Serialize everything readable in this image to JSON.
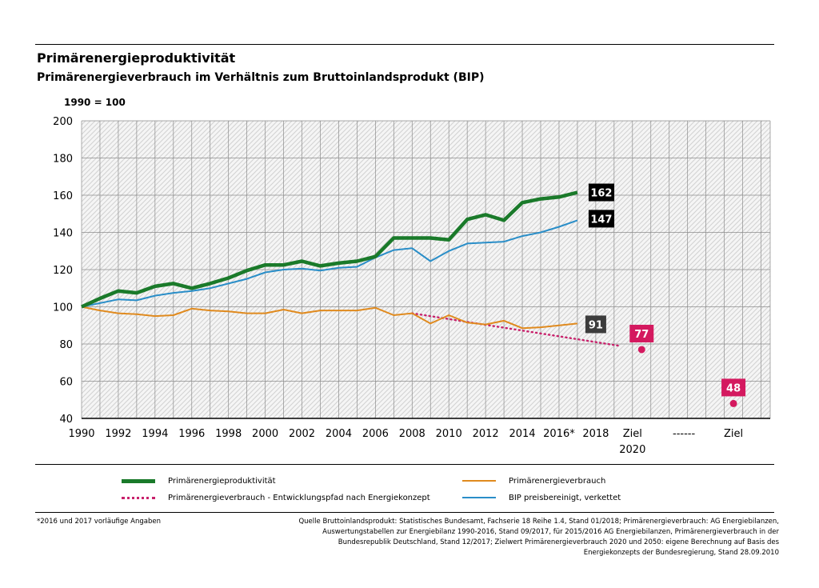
{
  "title": "Primärenergieproduktivität",
  "subtitle": "Primärenergieverbrauch im Verhältnis zum Bruttoinlandsprodukt (BIP)",
  "unit_label": "1990 = 100",
  "footnote": "*2016 und 2017 vorläufige Angaben",
  "source": "Quelle Bruttoinlandsprodukt: Statistisches Bundesamt, Fachserie 18 Reihe 1.4, Stand 01/2018; Primärenergieverbrauch: AG Energiebilanzen, Auswertungstabellen zur Energiebilanz 1990-2016, Stand 09/2017, für 2015/2016 AG Energiebilanzen, Primärenergieverbrauch in der Bundesrepublik Deutschland, Stand 12/2017; Zielwert Primärenergieverbrauch 2020 und 2050: eigene Berechnung auf Basis des Energiekonzepts der Bundesregierung, Stand 28.09.2010",
  "chart_data": {
    "type": "line",
    "ylim": [
      40,
      200
    ],
    "yticks": [
      40,
      60,
      80,
      100,
      120,
      140,
      160,
      180,
      200
    ],
    "xlim": [
      1990,
      2027.5
    ],
    "xtick_labels": [
      {
        "x": 1990,
        "label": "1990"
      },
      {
        "x": 1992,
        "label": "1992"
      },
      {
        "x": 1994,
        "label": "1994"
      },
      {
        "x": 1996,
        "label": "1996"
      },
      {
        "x": 1998,
        "label": "1998"
      },
      {
        "x": 2000,
        "label": "2000"
      },
      {
        "x": 2002,
        "label": "2002"
      },
      {
        "x": 2004,
        "label": "2004"
      },
      {
        "x": 2006,
        "label": "2006"
      },
      {
        "x": 2008,
        "label": "2008"
      },
      {
        "x": 2010,
        "label": "2010"
      },
      {
        "x": 2012,
        "label": "2012"
      },
      {
        "x": 2014,
        "label": "2014"
      },
      {
        "x": 2016,
        "label": "2016*"
      },
      {
        "x": 2018,
        "label": "2018"
      },
      {
        "x": 2020,
        "label": "Ziel",
        "label2": "2020"
      },
      {
        "x": 2022.8,
        "label": "------"
      },
      {
        "x": 2025.5,
        "label": "Ziel"
      }
    ],
    "grid": true,
    "legend_position": "bottom",
    "series": [
      {
        "name": "Primärenergieproduktivität",
        "color": "#1a7a2a",
        "style": "thick",
        "x": [
          1990,
          1991,
          1992,
          1993,
          1994,
          1995,
          1996,
          1997,
          1998,
          1999,
          2000,
          2001,
          2002,
          2003,
          2004,
          2005,
          2006,
          2007,
          2008,
          2009,
          2010,
          2011,
          2012,
          2013,
          2014,
          2015,
          2016,
          2017
        ],
        "y": [
          100,
          104.5,
          108.5,
          107.5,
          111,
          112.5,
          110,
          112.5,
          115.5,
          119.5,
          122.5,
          122.5,
          124.5,
          122,
          123.5,
          124.5,
          127,
          137,
          137,
          137,
          136,
          147,
          149.5,
          146.5,
          156,
          158,
          159,
          161.5
        ],
        "end_label": "162"
      },
      {
        "name": "Primärenergieverbrauch",
        "color": "#e08a1e",
        "style": "thin",
        "x": [
          1990,
          1991,
          1992,
          1993,
          1994,
          1995,
          1996,
          1997,
          1998,
          1999,
          2000,
          2001,
          2002,
          2003,
          2004,
          2005,
          2006,
          2007,
          2008,
          2009,
          2010,
          2011,
          2012,
          2013,
          2014,
          2015,
          2016,
          2017
        ],
        "y": [
          100,
          98,
          96.5,
          96,
          95,
          95.5,
          99,
          98,
          97.5,
          96.5,
          96.5,
          98.5,
          96.5,
          98,
          98,
          98,
          99.5,
          95.5,
          96.5,
          91,
          95.5,
          91.5,
          90.5,
          92.5,
          88.5,
          89,
          90,
          91
        ],
        "end_label": "91"
      },
      {
        "name": "Primärenergieverbrauch - Entwicklungspfad nach Energiekonzept",
        "color": "#c8216b",
        "style": "dotted",
        "x": [
          2008,
          2019.3
        ],
        "y": [
          96.5,
          79
        ],
        "targets": [
          {
            "x": 2020.5,
            "y": 77,
            "label": "77"
          },
          {
            "x": 2025.5,
            "y": 48,
            "label": "48"
          }
        ]
      },
      {
        "name": "BIP preisbereinigt, verkettet",
        "color": "#2a8ec8",
        "style": "thin",
        "x": [
          1990,
          1991,
          1992,
          1993,
          1994,
          1995,
          1996,
          1997,
          1998,
          1999,
          2000,
          2001,
          2002,
          2003,
          2004,
          2005,
          2006,
          2007,
          2008,
          2009,
          2010,
          2011,
          2012,
          2013,
          2014,
          2015,
          2016,
          2017
        ],
        "y": [
          100,
          102,
          104,
          103.5,
          106,
          107.5,
          108.5,
          110,
          112.5,
          115,
          118.5,
          120,
          120.5,
          119.5,
          121,
          121.5,
          126.5,
          130.5,
          131.5,
          124.5,
          130,
          134,
          134.5,
          135,
          138,
          140,
          143,
          146.5
        ],
        "end_label": "147"
      }
    ]
  }
}
